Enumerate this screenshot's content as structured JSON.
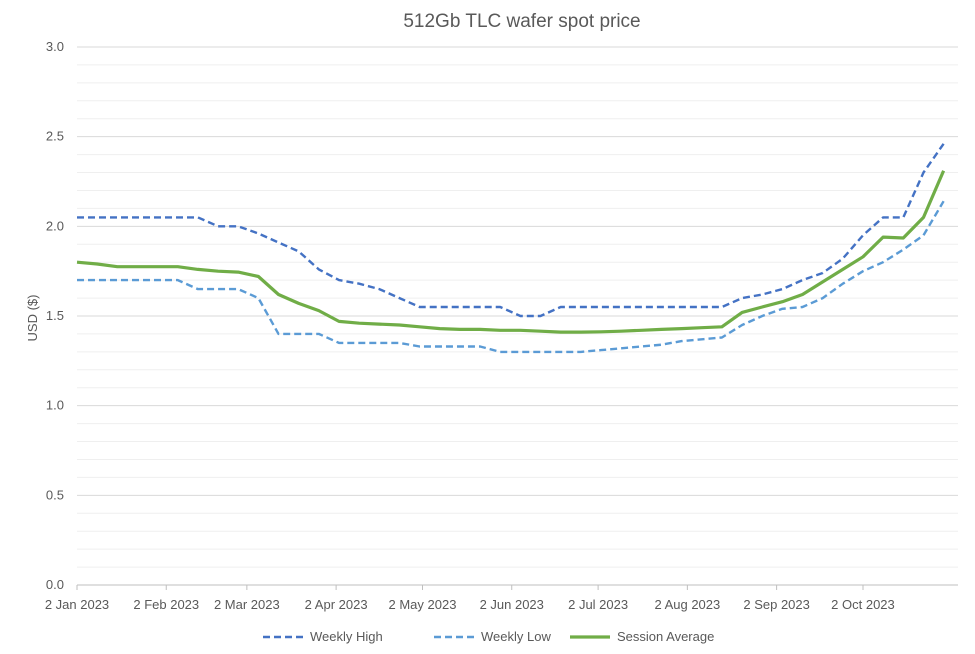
{
  "chart_data": {
    "type": "line",
    "title": "512Gb TLC wafer spot price",
    "xlabel": "",
    "ylabel": "USD ($)",
    "ylim": [
      0,
      3.0
    ],
    "y_ticks": [
      "0.0",
      "0.5",
      "1.0",
      "1.5",
      "2.0",
      "2.5",
      "3.0"
    ],
    "x_tick_labels": [
      "2 Jan 2023",
      "2 Feb 2023",
      "2 Mar 2023",
      "2 Apr 2023",
      "2 May 2023",
      "2 Jun 2023",
      "2 Jul 2023",
      "2 Aug 2023",
      "2 Sep 2023",
      "2 Oct 2023"
    ],
    "x_tick_dates": [
      "2023-01-02",
      "2023-02-02",
      "2023-03-02",
      "2023-04-02",
      "2023-05-02",
      "2023-06-02",
      "2023-07-02",
      "2023-08-02",
      "2023-09-02",
      "2023-10-02"
    ],
    "x_range": [
      "2023-01-02",
      "2023-11-04"
    ],
    "grid": true,
    "legend_position": "bottom",
    "x": [
      "2023-01-02",
      "2023-01-09",
      "2023-01-16",
      "2023-01-23",
      "2023-01-30",
      "2023-02-06",
      "2023-02-13",
      "2023-02-20",
      "2023-02-27",
      "2023-03-06",
      "2023-03-13",
      "2023-03-20",
      "2023-03-27",
      "2023-04-03",
      "2023-04-10",
      "2023-04-17",
      "2023-04-24",
      "2023-05-01",
      "2023-05-08",
      "2023-05-15",
      "2023-05-22",
      "2023-05-29",
      "2023-06-05",
      "2023-06-12",
      "2023-06-19",
      "2023-06-26",
      "2023-07-03",
      "2023-07-10",
      "2023-07-17",
      "2023-07-24",
      "2023-07-31",
      "2023-08-07",
      "2023-08-14",
      "2023-08-21",
      "2023-08-28",
      "2023-09-04",
      "2023-09-11",
      "2023-09-18",
      "2023-09-25",
      "2023-10-02",
      "2023-10-09",
      "2023-10-16",
      "2023-10-23",
      "2023-10-30"
    ],
    "series": [
      {
        "name": "Weekly High",
        "color": "#4472c4",
        "dash": "dashed",
        "values": [
          2.05,
          2.05,
          2.05,
          2.05,
          2.05,
          2.05,
          2.05,
          2.0,
          2.0,
          1.96,
          1.91,
          1.86,
          1.76,
          1.7,
          1.68,
          1.65,
          1.6,
          1.55,
          1.55,
          1.55,
          1.55,
          1.55,
          1.5,
          1.5,
          1.55,
          1.55,
          1.55,
          1.55,
          1.55,
          1.55,
          1.55,
          1.55,
          1.55,
          1.6,
          1.62,
          1.65,
          1.7,
          1.74,
          1.82,
          1.95,
          2.05,
          2.05,
          2.3,
          2.46
        ]
      },
      {
        "name": "Weekly Low",
        "color": "#5b9bd5",
        "dash": "dashed",
        "values": [
          1.7,
          1.7,
          1.7,
          1.7,
          1.7,
          1.7,
          1.65,
          1.65,
          1.65,
          1.6,
          1.4,
          1.4,
          1.4,
          1.35,
          1.35,
          1.35,
          1.35,
          1.33,
          1.33,
          1.33,
          1.33,
          1.3,
          1.3,
          1.3,
          1.3,
          1.3,
          1.31,
          1.32,
          1.33,
          1.34,
          1.36,
          1.37,
          1.38,
          1.45,
          1.5,
          1.54,
          1.55,
          1.6,
          1.68,
          1.75,
          1.8,
          1.87,
          1.95,
          2.14
        ]
      },
      {
        "name": "Session Average",
        "color": "#70ad47",
        "dash": "solid",
        "values": [
          1.8,
          1.79,
          1.775,
          1.775,
          1.775,
          1.775,
          1.76,
          1.75,
          1.745,
          1.72,
          1.62,
          1.57,
          1.53,
          1.47,
          1.46,
          1.455,
          1.45,
          1.44,
          1.43,
          1.425,
          1.425,
          1.42,
          1.42,
          1.415,
          1.41,
          1.41,
          1.412,
          1.415,
          1.42,
          1.425,
          1.43,
          1.435,
          1.44,
          1.52,
          1.55,
          1.58,
          1.62,
          1.69,
          1.76,
          1.83,
          1.94,
          1.935,
          2.05,
          2.31
        ]
      }
    ]
  }
}
